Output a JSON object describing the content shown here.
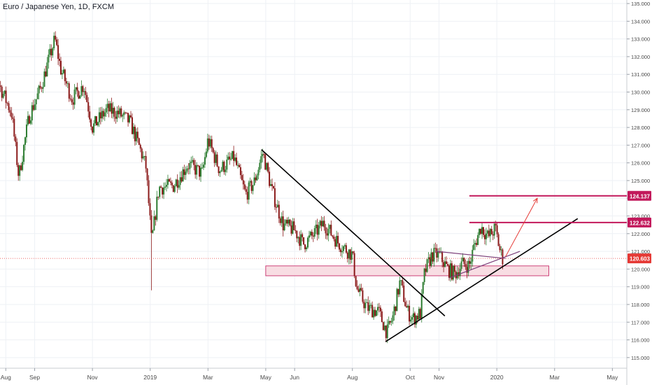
{
  "header": {
    "title": "Euro / Japanese Yen, 1D, FXCM"
  },
  "colors": {
    "up": "#2e7d32",
    "down": "#8b1a1a",
    "line": "#000000",
    "level": "#c2185b",
    "zone_fill": "#f7d7de",
    "zone_stroke": "#c2185b",
    "current_price": "#e53935",
    "grid": "#eef1f5",
    "text": "#4a4a4a"
  },
  "chart_data": {
    "type": "candlestick",
    "title": "Euro / Japanese Yen, 1D, FXCM",
    "xlabel": "",
    "ylabel": "",
    "x_ticks": [
      {
        "label": "Aug",
        "t": 0
      },
      {
        "label": "Sep",
        "t": 1
      },
      {
        "label": "Nov",
        "t": 3
      },
      {
        "label": "2019",
        "t": 5
      },
      {
        "label": "Mar",
        "t": 7
      },
      {
        "label": "May",
        "t": 9
      },
      {
        "label": "Jun",
        "t": 10
      },
      {
        "label": "Aug",
        "t": 12
      },
      {
        "label": "Oct",
        "t": 14
      },
      {
        "label": "Nov",
        "t": 15
      },
      {
        "label": "2020",
        "t": 17
      },
      {
        "label": "Mar",
        "t": 19
      },
      {
        "label": "May",
        "t": 21
      }
    ],
    "x_range": [
      -0.2,
      21.5
    ],
    "ylim": [
      114.4,
      135.2
    ],
    "y_ticks": [
      "115.000",
      "116.000",
      "117.000",
      "118.000",
      "119.000",
      "120.000",
      "121.000",
      "122.000",
      "123.000",
      "124.000",
      "125.000",
      "126.000",
      "127.000",
      "128.000",
      "129.000",
      "130.000",
      "131.000",
      "132.000",
      "133.000",
      "134.000",
      "135.000"
    ],
    "price_keypoints": [
      [
        -0.8,
        131.8
      ],
      [
        -0.3,
        130.7
      ],
      [
        0.2,
        128.8
      ],
      [
        0.45,
        125.2
      ],
      [
        0.8,
        128.6
      ],
      [
        1.2,
        130.2
      ],
      [
        1.7,
        133.0
      ],
      [
        1.9,
        131.3
      ],
      [
        2.3,
        129.6
      ],
      [
        2.7,
        130.4
      ],
      [
        3.0,
        128.0
      ],
      [
        3.5,
        129.0
      ],
      [
        3.9,
        128.8
      ],
      [
        4.3,
        128.3
      ],
      [
        4.6,
        127.0
      ],
      [
        4.85,
        125.8
      ],
      [
        5.05,
        121.5
      ],
      [
        5.3,
        124.6
      ],
      [
        5.8,
        124.7
      ],
      [
        6.3,
        125.9
      ],
      [
        6.8,
        125.4
      ],
      [
        7.0,
        127.3
      ],
      [
        7.4,
        125.6
      ],
      [
        7.9,
        126.3
      ],
      [
        8.3,
        124.2
      ],
      [
        8.6,
        124.9
      ],
      [
        8.9,
        126.6
      ],
      [
        9.2,
        124.5
      ],
      [
        9.6,
        122.5
      ],
      [
        10.0,
        122.2
      ],
      [
        10.3,
        121.4
      ],
      [
        10.7,
        122.0
      ],
      [
        11.0,
        122.6
      ],
      [
        11.5,
        121.5
      ],
      [
        12.0,
        120.8
      ],
      [
        12.15,
        118.9
      ],
      [
        12.5,
        117.8
      ],
      [
        12.9,
        117.6
      ],
      [
        13.2,
        116.4
      ],
      [
        13.4,
        117.3
      ],
      [
        13.65,
        119.3
      ],
      [
        13.9,
        117.6
      ],
      [
        14.1,
        117.2
      ],
      [
        14.35,
        117.5
      ],
      [
        14.5,
        119.8
      ],
      [
        14.75,
        120.8
      ],
      [
        15.0,
        120.8
      ],
      [
        15.3,
        120.0
      ],
      [
        15.55,
        119.7
      ],
      [
        15.8,
        120.3
      ],
      [
        16.05,
        120.2
      ],
      [
        16.2,
        121.2
      ],
      [
        16.45,
        122.4
      ],
      [
        16.7,
        121.8
      ],
      [
        16.95,
        122.3
      ],
      [
        17.1,
        121.1
      ],
      [
        17.2,
        120.6
      ]
    ],
    "current_price": 120.603,
    "levels": [
      {
        "value": 124.137,
        "label": "124.137",
        "t_start": 16.05
      },
      {
        "value": 122.632,
        "label": "122.632",
        "t_start": 16.05
      }
    ],
    "zone": {
      "y_low": 119.7,
      "y_high": 120.1,
      "t_start": 9.0,
      "t_end": 18.8
    },
    "trendlines": [
      {
        "name": "downtrend",
        "t1": 8.85,
        "p1": 126.75,
        "t2": 15.2,
        "p2": 117.35
      },
      {
        "name": "uptrend",
        "t1": 13.15,
        "p1": 115.9,
        "t2": 19.8,
        "p2": 122.85
      }
    ],
    "triangle_lines": [
      {
        "t1": 14.9,
        "p1": 121.0,
        "t2": 17.3,
        "p2": 120.6
      },
      {
        "t1": 15.35,
        "p1": 119.5,
        "t2": 17.8,
        "p2": 121.0
      }
    ],
    "projection": {
      "t1": 17.3,
      "p1": 120.7,
      "t2": 18.4,
      "p2": 124.0
    }
  }
}
